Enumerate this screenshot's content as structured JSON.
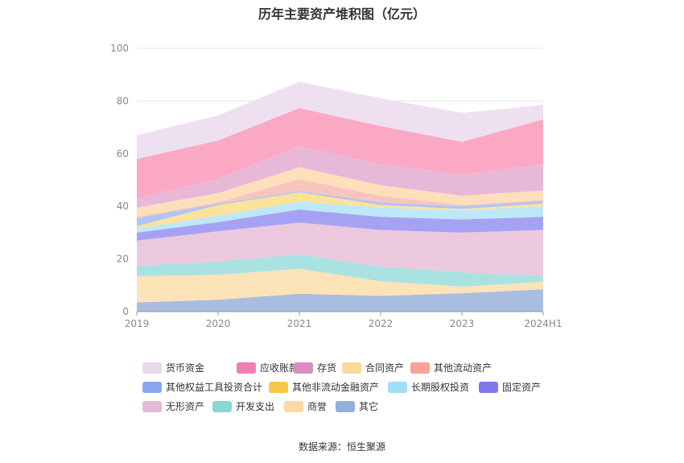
{
  "title": "历年主要资产堆积图（亿元）",
  "source": "数据来源：恒生聚源",
  "chart_data": {
    "type": "area",
    "stacked": true,
    "categories": [
      "2019",
      "2020",
      "2021",
      "2022",
      "2023",
      "2024H1"
    ],
    "ylim": [
      0,
      100
    ],
    "yticks": [
      0,
      20,
      40,
      60,
      80,
      100
    ],
    "grid": true,
    "legend_position": "bottom",
    "series": [
      {
        "name": "其它",
        "color": "#a9bde0",
        "values": [
          3.5,
          4.5,
          6.8,
          6.0,
          7.0,
          8.5
        ]
      },
      {
        "name": "商誉",
        "color": "#fde3b8",
        "values": [
          10.0,
          9.5,
          9.5,
          5.5,
          2.5,
          2.8
        ]
      },
      {
        "name": "开发支出",
        "color": "#a9e2e0",
        "values": [
          4.0,
          5.0,
          5.5,
          5.5,
          5.5,
          2.2
        ]
      },
      {
        "name": "无形资产",
        "color": "#ecc8df",
        "values": [
          9.5,
          11.5,
          12.0,
          14.0,
          15.0,
          17.5
        ]
      },
      {
        "name": "固定资产",
        "color": "#a6a2f3",
        "values": [
          3.0,
          3.5,
          5.0,
          5.0,
          5.0,
          5.0
        ]
      },
      {
        "name": "长期股权投资",
        "color": "#bde8f8",
        "values": [
          1.5,
          2.5,
          3.0,
          3.5,
          3.5,
          4.0
        ]
      },
      {
        "name": "其他非流动金融资产",
        "color": "#fde29a",
        "values": [
          1.0,
          4.0,
          3.5,
          1.0,
          0.5,
          1.0
        ]
      },
      {
        "name": "其他权益工具投资合计",
        "color": "#b0c4f5",
        "values": [
          3.0,
          0.5,
          0.5,
          1.0,
          1.0,
          1.0
        ]
      },
      {
        "name": "其他流动资产",
        "color": "#f9c4bd",
        "values": [
          0.5,
          0.5,
          4.5,
          2.5,
          0.5,
          0.5
        ]
      },
      {
        "name": "合同资产",
        "color": "#fde0bb",
        "values": [
          3.5,
          3.5,
          4.5,
          4.0,
          3.5,
          3.5
        ]
      },
      {
        "name": "存货",
        "color": "#e8b8d9",
        "values": [
          3.5,
          5.5,
          8.0,
          8.0,
          8.0,
          10.0
        ]
      },
      {
        "name": "应收账款",
        "color": "#fba8c4",
        "values": [
          15.0,
          14.5,
          14.5,
          14.5,
          12.5,
          17.0
        ]
      },
      {
        "name": "货币资金",
        "color": "#eee0f0",
        "values": [
          9.0,
          9.5,
          10.0,
          10.5,
          11.0,
          5.5
        ]
      }
    ],
    "legend": [
      {
        "name": "货币资金",
        "color": "#e8d8ec"
      },
      {
        "name": "应收账款",
        "color": "#f07fae"
      },
      {
        "name": "存货",
        "color": "#db8ec3"
      },
      {
        "name": "合同资产",
        "color": "#fbd799"
      },
      {
        "name": "其他流动资产",
        "color": "#f7a396"
      },
      {
        "name": "其他权益工具投资合计",
        "color": "#86a6ef"
      },
      {
        "name": "其他非流动金融资产",
        "color": "#f9c74a"
      },
      {
        "name": "长期股权投资",
        "color": "#a3def7"
      },
      {
        "name": "固定资产",
        "color": "#7d78ec"
      },
      {
        "name": "无形资产",
        "color": "#e6b9d8"
      },
      {
        "name": "开发支出",
        "color": "#89d6d3"
      },
      {
        "name": "商誉",
        "color": "#fdd8a2"
      },
      {
        "name": "其它",
        "color": "#93aedb"
      }
    ]
  }
}
